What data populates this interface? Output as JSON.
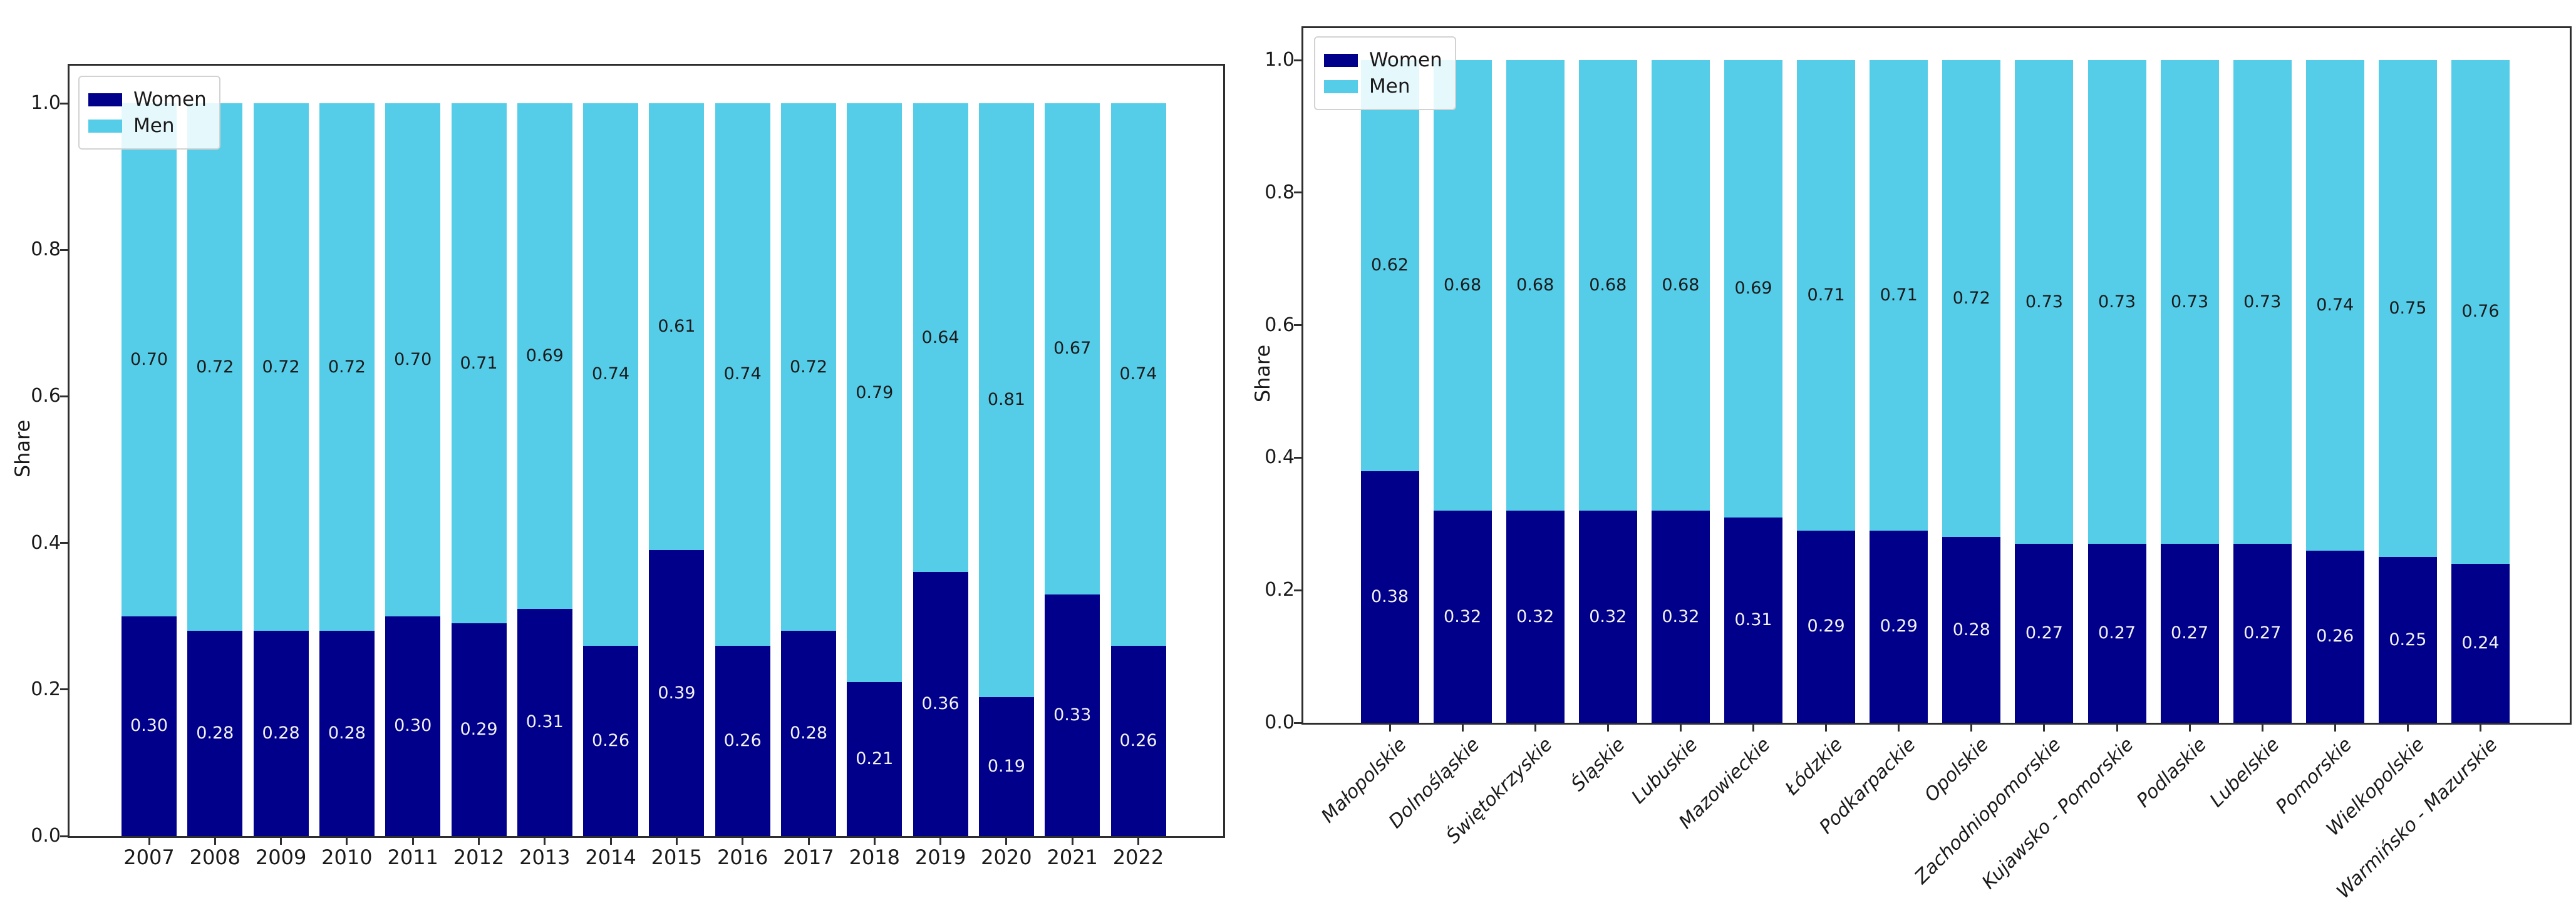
{
  "figure": {
    "background": "#ffffff"
  },
  "colors": {
    "women": "#00008B",
    "men": "#55CDE9",
    "men_label_text": "#1a1a1a",
    "women_label_text": "#f2f2f2",
    "spine": "#2e2e2e"
  },
  "chart_data": [
    {
      "type": "bar",
      "stacked": true,
      "title": "",
      "ylabel": "Share",
      "xlabel": "",
      "ylim": [
        0,
        1
      ],
      "yticks": [
        "0.0",
        "0.2",
        "0.4",
        "0.6",
        "0.8",
        "1.0"
      ],
      "grid": false,
      "legend_position": "upper-left",
      "bar_label_decimals": 2,
      "xtick_rotation": 0,
      "categories": [
        "2007",
        "2008",
        "2009",
        "2010",
        "2011",
        "2012",
        "2013",
        "2014",
        "2015",
        "2016",
        "2017",
        "2018",
        "2019",
        "2020",
        "2021",
        "2022"
      ],
      "series": [
        {
          "name": "Women",
          "color_key": "women",
          "values": [
            0.3,
            0.28,
            0.28,
            0.28,
            0.3,
            0.29,
            0.31,
            0.26,
            0.39,
            0.26,
            0.28,
            0.21,
            0.36,
            0.19,
            0.33,
            0.26
          ]
        },
        {
          "name": "Men",
          "color_key": "men",
          "values": [
            0.7,
            0.72,
            0.72,
            0.72,
            0.7,
            0.71,
            0.69,
            0.74,
            0.61,
            0.74,
            0.72,
            0.79,
            0.64,
            0.81,
            0.67,
            0.74
          ]
        }
      ]
    },
    {
      "type": "bar",
      "stacked": true,
      "title": "",
      "ylabel": "Share",
      "xlabel": "",
      "ylim": [
        0,
        1
      ],
      "yticks": [
        "0.0",
        "0.2",
        "0.4",
        "0.6",
        "0.8",
        "1.0"
      ],
      "grid": false,
      "legend_position": "upper-left",
      "bar_label_decimals": 2,
      "xtick_rotation": 45,
      "categories": [
        "Małopolskie",
        "Dolnośląskie",
        "Świętokrzyskie",
        "Śląskie",
        "Lubuskie",
        "Mazowieckie",
        "Łódzkie",
        "Podkarpackie",
        "Opolskie",
        "Zachodniopomorskie",
        "Kujawsko - Pomorskie",
        "Podlaskie",
        "Lubelskie",
        "Pomorskie",
        "Wielkopolskie",
        "Warmińsko - Mazurskie"
      ],
      "series": [
        {
          "name": "Women",
          "color_key": "women",
          "values": [
            0.38,
            0.32,
            0.32,
            0.32,
            0.32,
            0.31,
            0.29,
            0.29,
            0.28,
            0.27,
            0.27,
            0.27,
            0.27,
            0.26,
            0.25,
            0.24
          ]
        },
        {
          "name": "Men",
          "color_key": "men",
          "values": [
            0.62,
            0.68,
            0.68,
            0.68,
            0.68,
            0.69,
            0.71,
            0.71,
            0.72,
            0.73,
            0.73,
            0.73,
            0.73,
            0.74,
            0.75,
            0.76
          ]
        }
      ]
    }
  ]
}
